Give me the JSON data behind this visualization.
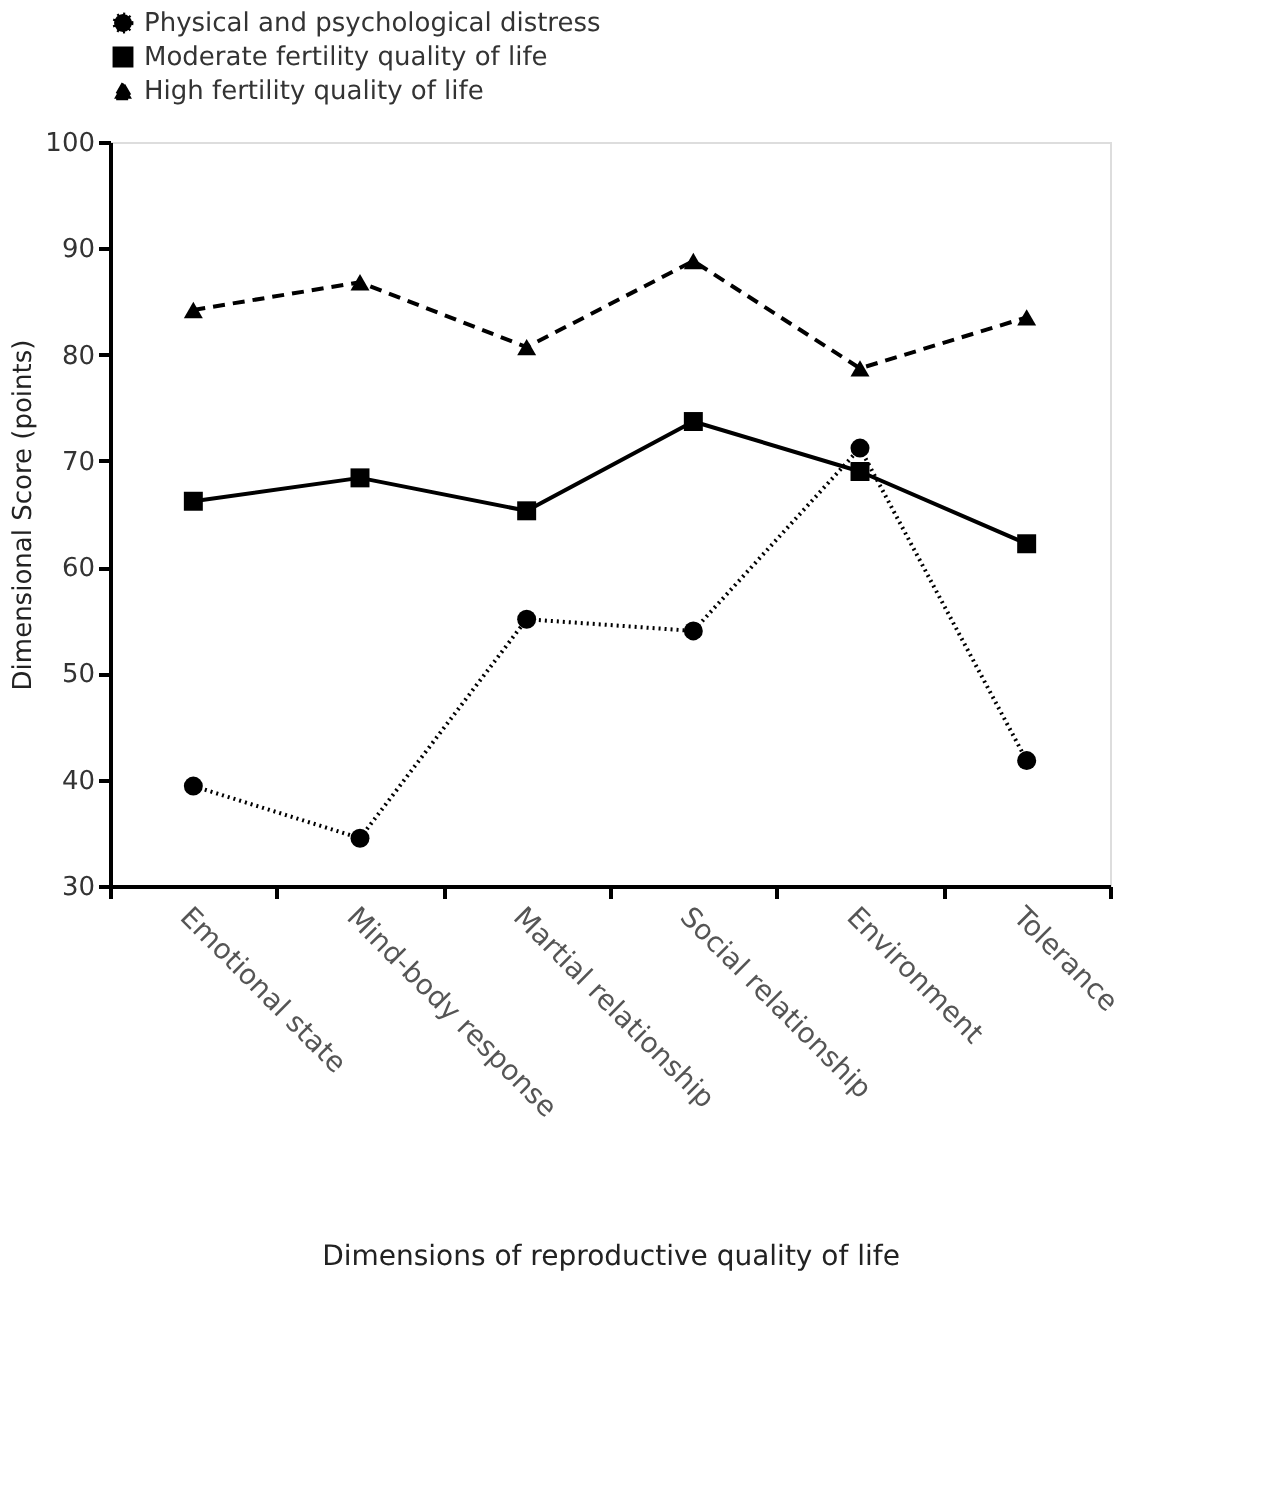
{
  "chart_data": {
    "type": "line",
    "xlabel": "Dimensions of reproductive quality of life",
    "ylabel": "Dimensional Score (points)",
    "categories": [
      "Emotional state",
      "Mind-body response",
      "Martial relationship",
      "Social relationship",
      "Environment",
      "Tolerance"
    ],
    "series": [
      {
        "name": "Physical and psychological distress",
        "color": "#000000",
        "marker": "circle",
        "line_style": "dotted",
        "values": [
          39.4,
          34.5,
          55.1,
          54.0,
          71.2,
          41.8
        ]
      },
      {
        "name": "Moderate fertility quality of life",
        "color": "#000000",
        "marker": "square",
        "line_style": "solid",
        "values": [
          66.2,
          68.4,
          65.3,
          73.7,
          69.0,
          62.2
        ]
      },
      {
        "name": "High fertility quality of life",
        "color": "#000000",
        "marker": "triangle",
        "line_style": "dashed",
        "values": [
          84.2,
          86.8,
          80.7,
          88.8,
          78.7,
          83.5
        ]
      }
    ],
    "ylim": [
      30,
      100
    ],
    "yticks": [
      30,
      40,
      50,
      60,
      70,
      80,
      90,
      100
    ],
    "grid": false,
    "legend": "top"
  }
}
